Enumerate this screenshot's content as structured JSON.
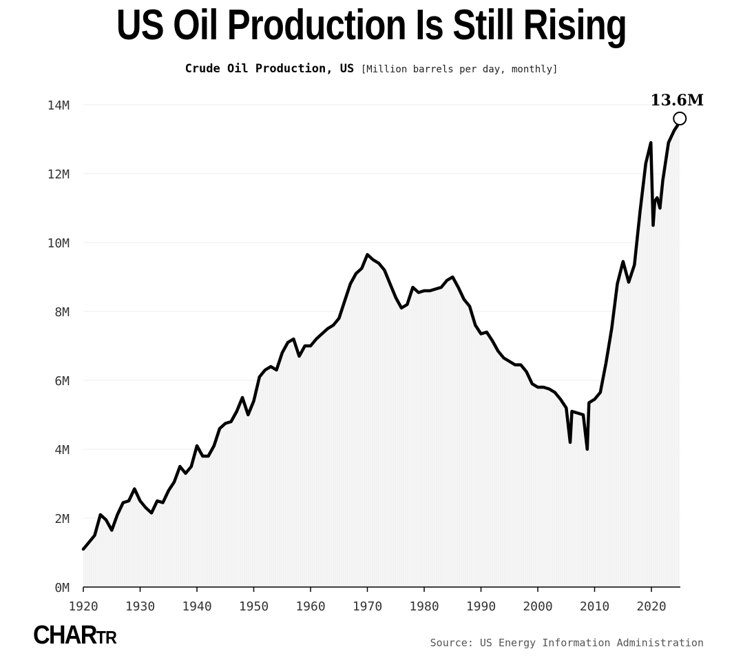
{
  "chart_data": {
    "type": "line",
    "title": "US Oil Production Is Still Rising",
    "subtitle": "Crude Oil Production, US",
    "unit": "[Million barrels per day, monthly]",
    "xlabel": "",
    "ylabel": "",
    "xlim": [
      1920,
      2025.5
    ],
    "ylim": [
      0,
      14
    ],
    "yticks": [
      0,
      2,
      4,
      6,
      8,
      10,
      12,
      14
    ],
    "ytick_labels": [
      "0M",
      "2M",
      "4M",
      "6M",
      "8M",
      "10M",
      "12M",
      "14M"
    ],
    "xticks": [
      1920,
      1930,
      1940,
      1950,
      1960,
      1970,
      1980,
      1990,
      2000,
      2010,
      2020
    ],
    "xtick_labels": [
      "1920",
      "1930",
      "1940",
      "1950",
      "1960",
      "1970",
      "1980",
      "1990",
      "2000",
      "2010",
      "2020"
    ],
    "grid": true,
    "area_fill": true,
    "series": [
      {
        "name": "Crude Oil Production, US",
        "x": [
          1920,
          1921,
          1922,
          1923,
          1924,
          1925,
          1926,
          1927,
          1928,
          1929,
          1930,
          1931,
          1932,
          1933,
          1934,
          1935,
          1936,
          1937,
          1938,
          1939,
          1940,
          1941,
          1942,
          1943,
          1944,
          1945,
          1946,
          1947,
          1948,
          1949,
          1950,
          1951,
          1952,
          1953,
          1954,
          1955,
          1956,
          1957,
          1958,
          1959,
          1960,
          1961,
          1962,
          1963,
          1964,
          1965,
          1966,
          1967,
          1968,
          1969,
          1970,
          1971,
          1972,
          1973,
          1974,
          1975,
          1976,
          1977,
          1978,
          1979,
          1980,
          1981,
          1982,
          1983,
          1984,
          1985,
          1986,
          1987,
          1988,
          1989,
          1990,
          1991,
          1992,
          1993,
          1994,
          1995,
          1996,
          1997,
          1998,
          1999,
          2000,
          2001,
          2002,
          2003,
          2004,
          2005,
          2005.7,
          2006,
          2007,
          2008,
          2008.7,
          2009,
          2010,
          2011,
          2012,
          2013,
          2014,
          2015,
          2016,
          2017,
          2018,
          2019,
          2019.9,
          2020.3,
          2020.6,
          2021,
          2021.5,
          2022,
          2023,
          2024,
          2024.6,
          2025
        ],
        "values": [
          1.1,
          1.3,
          1.5,
          2.1,
          1.95,
          1.65,
          2.1,
          2.45,
          2.5,
          2.85,
          2.5,
          2.3,
          2.15,
          2.5,
          2.45,
          2.8,
          3.05,
          3.5,
          3.3,
          3.5,
          4.1,
          3.8,
          3.8,
          4.1,
          4.6,
          4.75,
          4.8,
          5.1,
          5.5,
          5.0,
          5.4,
          6.1,
          6.3,
          6.4,
          6.3,
          6.8,
          7.1,
          7.2,
          6.7,
          7.0,
          7.0,
          7.2,
          7.35,
          7.5,
          7.6,
          7.8,
          8.3,
          8.8,
          9.1,
          9.25,
          9.65,
          9.5,
          9.4,
          9.2,
          8.8,
          8.4,
          8.1,
          8.2,
          8.7,
          8.55,
          8.6,
          8.6,
          8.65,
          8.7,
          8.9,
          9.0,
          8.7,
          8.35,
          8.15,
          7.6,
          7.35,
          7.4,
          7.15,
          6.85,
          6.65,
          6.55,
          6.45,
          6.45,
          6.25,
          5.9,
          5.8,
          5.8,
          5.75,
          5.65,
          5.45,
          5.2,
          4.2,
          5.1,
          5.05,
          5.0,
          4.0,
          5.35,
          5.45,
          5.65,
          6.5,
          7.5,
          8.8,
          9.45,
          8.85,
          9.35,
          10.9,
          12.3,
          12.9,
          10.5,
          11.2,
          11.3,
          11.0,
          11.8,
          12.9,
          13.25,
          13.4,
          13.6
        ]
      }
    ],
    "annotations": [
      {
        "text": "13.6M",
        "x": 2025,
        "y": 13.6
      }
    ]
  },
  "footer": {
    "logo": "CHARTR",
    "logo_main": "CHAR",
    "logo_small": "TR",
    "source": "Source: US Energy Information Administration"
  }
}
